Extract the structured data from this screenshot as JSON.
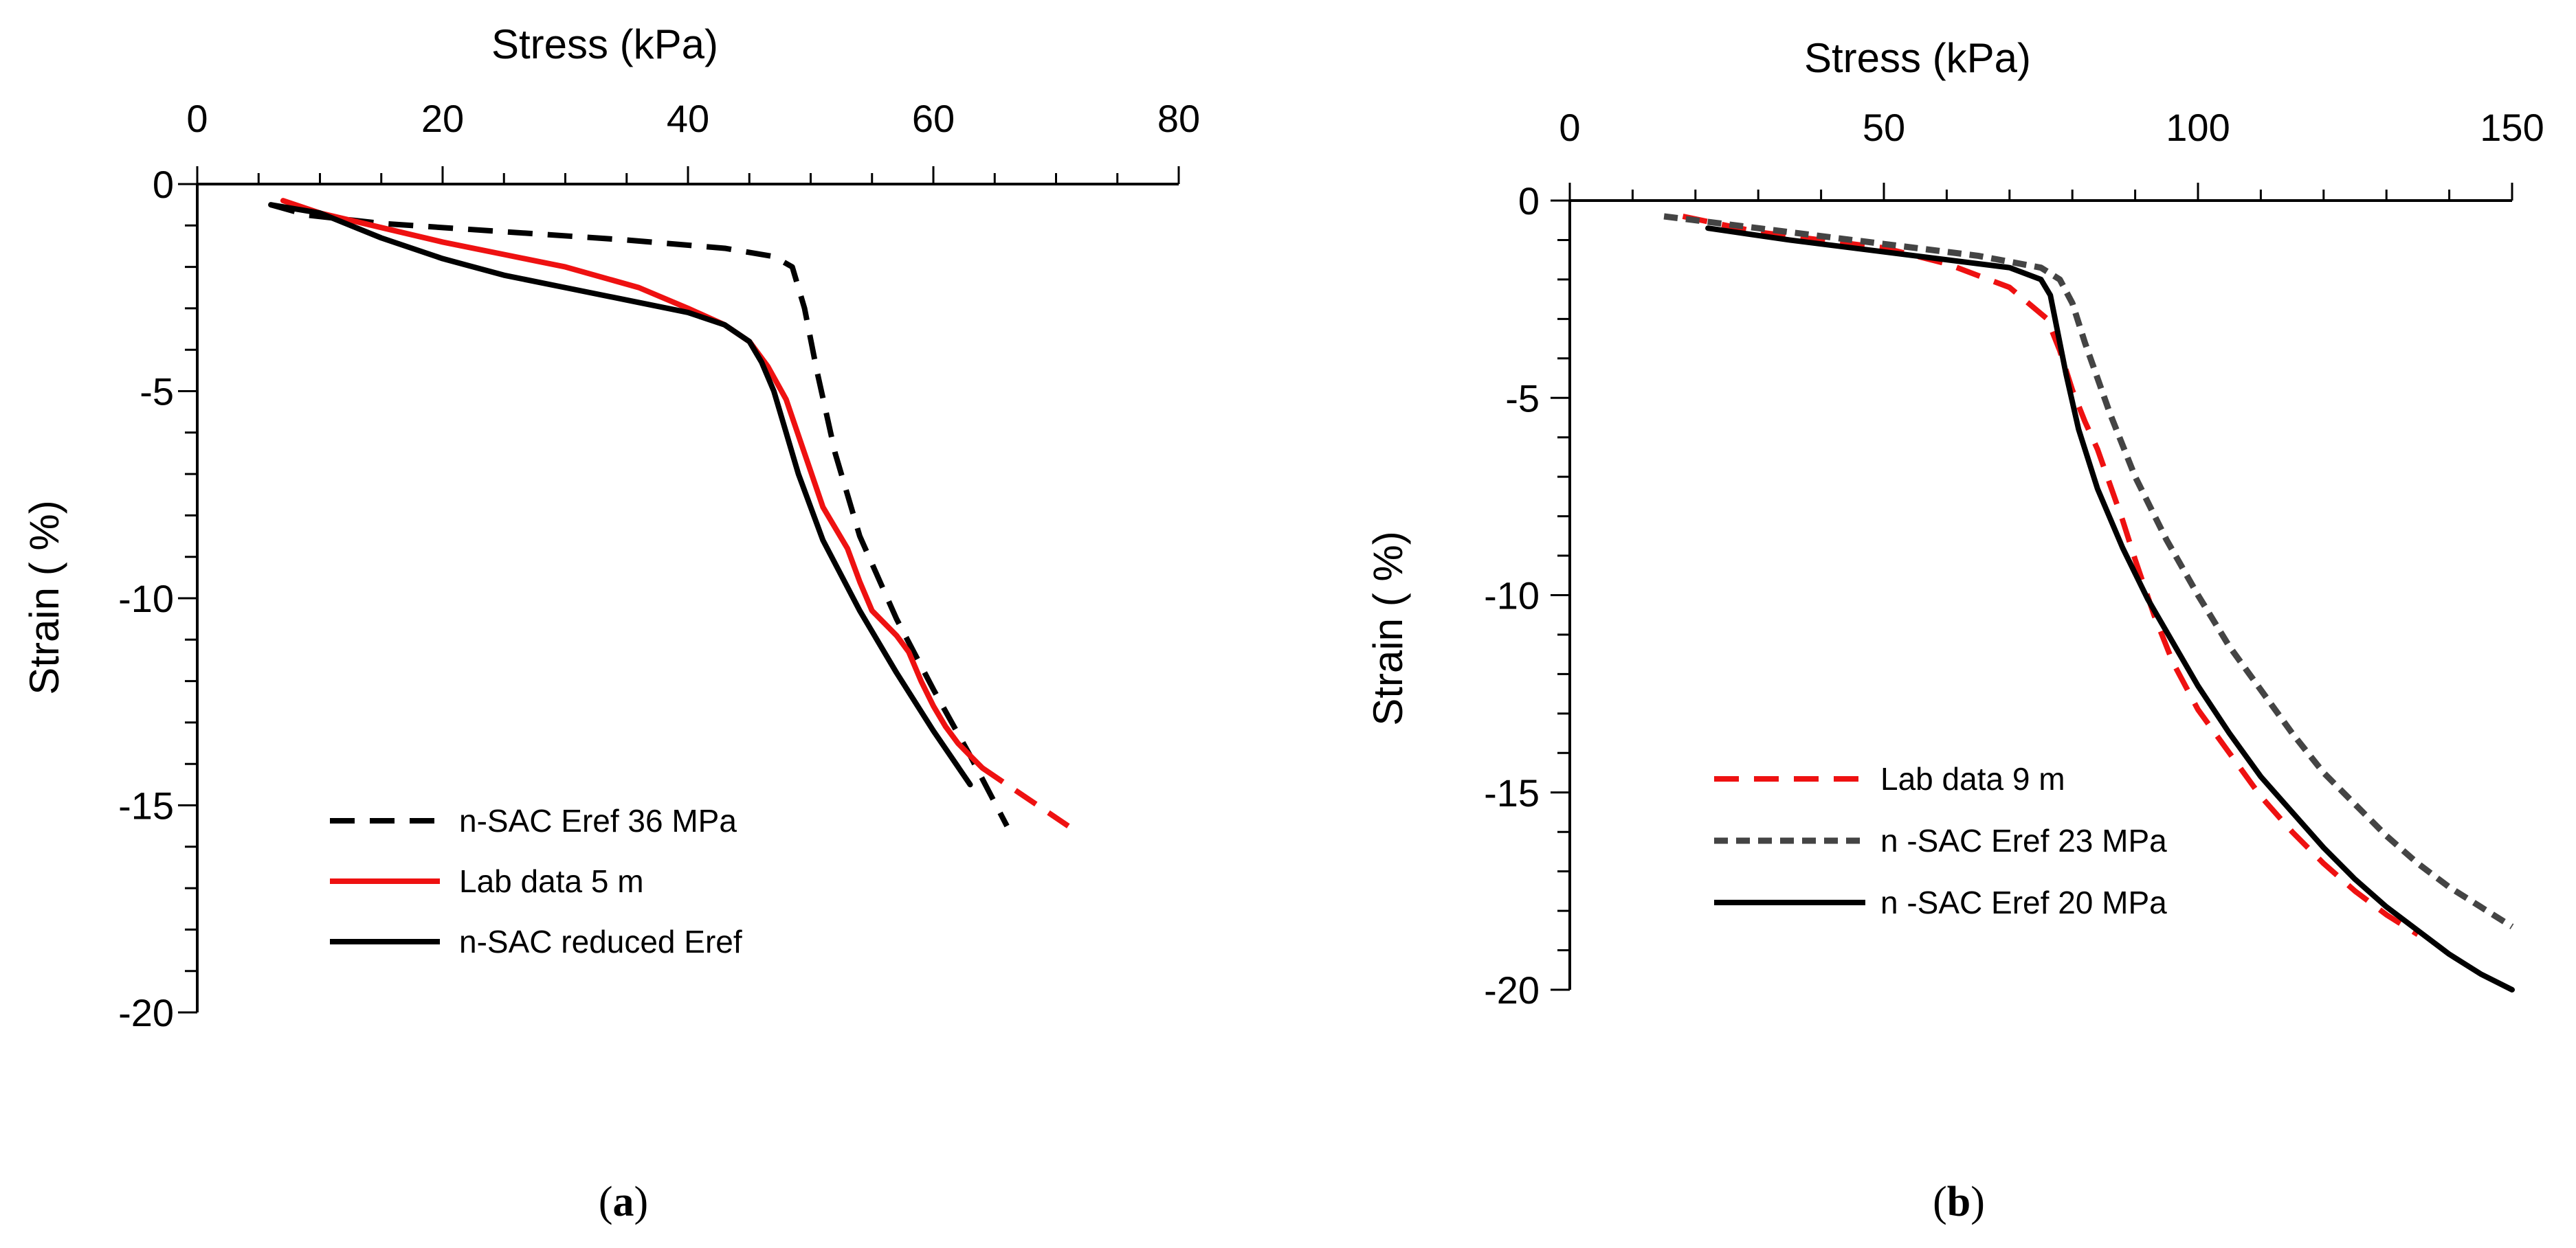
{
  "chart_data": [
    {
      "panel": "a",
      "type": "line",
      "caption": {
        "open": "(",
        "letter": "a",
        "close": ")"
      },
      "xlabel": "Stress (kPa)",
      "ylabel": "Strain ( %)",
      "xlim": [
        0,
        80
      ],
      "ylim": [
        -20,
        0
      ],
      "xticks": [
        0,
        20,
        40,
        60,
        80
      ],
      "yticks": [
        0,
        -5,
        -10,
        -15,
        -20
      ],
      "xtick_labels": [
        "0",
        "20",
        "40",
        "60",
        "80"
      ],
      "ytick_labels": [
        "0",
        "-5",
        "-10",
        "-15",
        "-20"
      ],
      "x_axis_position": "top",
      "legend_position": "bottom-center",
      "series": [
        {
          "name": "n-SAC Eref 36 MPa",
          "color": "#000000",
          "style": "dashed",
          "x": [
            6,
            9,
            15,
            25,
            35,
            43,
            47,
            48.5,
            49.5,
            50.5,
            52,
            54,
            57,
            60,
            63,
            66
          ],
          "y": [
            -0.5,
            -0.75,
            -0.95,
            -1.15,
            -1.35,
            -1.55,
            -1.75,
            -2.0,
            -3.0,
            -4.5,
            -6.5,
            -8.5,
            -10.5,
            -12.2,
            -13.8,
            -15.5
          ]
        },
        {
          "name": "Lab data 5 m",
          "color": "#ee1111",
          "style": "solid-then-dashed",
          "solid_until_x": 64,
          "x": [
            7,
            10,
            15,
            20,
            25,
            30,
            36,
            40,
            43,
            45,
            46.5,
            48,
            49.5,
            51,
            53,
            54,
            55,
            56,
            57,
            58,
            59,
            60,
            61,
            62,
            63,
            64,
            66,
            68,
            71
          ],
          "y": [
            -0.4,
            -0.7,
            -1.05,
            -1.4,
            -1.7,
            -2.0,
            -2.5,
            -3.0,
            -3.4,
            -3.8,
            -4.4,
            -5.2,
            -6.5,
            -7.8,
            -8.8,
            -9.6,
            -10.3,
            -10.6,
            -10.9,
            -11.3,
            -12.0,
            -12.6,
            -13.1,
            -13.5,
            -13.8,
            -14.1,
            -14.5,
            -14.9,
            -15.5
          ]
        },
        {
          "name": "n-SAC reduced Eref",
          "color": "#000000",
          "style": "solid",
          "x": [
            6,
            10,
            15,
            20,
            25,
            30,
            35,
            40,
            43,
            45,
            46,
            47,
            48,
            49,
            51,
            54,
            57,
            60,
            63
          ],
          "y": [
            -0.5,
            -0.7,
            -1.3,
            -1.8,
            -2.2,
            -2.5,
            -2.8,
            -3.1,
            -3.4,
            -3.8,
            -4.3,
            -5.0,
            -6.0,
            -7.0,
            -8.6,
            -10.3,
            -11.8,
            -13.2,
            -14.5
          ]
        }
      ]
    },
    {
      "panel": "b",
      "type": "line",
      "caption": {
        "open": "(",
        "letter": "b",
        "close": ")"
      },
      "xlabel": "Stress (kPa)",
      "ylabel": "Strain ( %)",
      "xlim": [
        0,
        150
      ],
      "ylim": [
        -20,
        0
      ],
      "xticks": [
        0,
        50,
        100,
        150
      ],
      "yticks": [
        0,
        -5,
        -10,
        -15,
        -20
      ],
      "xtick_labels": [
        "0",
        "50",
        "100",
        "150"
      ],
      "ytick_labels": [
        "0",
        "-5",
        "-10",
        "-15",
        "-20"
      ],
      "x_axis_position": "top",
      "legend_position": "bottom-left",
      "series": [
        {
          "name": "Lab data 9 m",
          "color": "#ee1111",
          "style": "dashed",
          "x": [
            18,
            30,
            50,
            60,
            70,
            76,
            78,
            80,
            82,
            84,
            86,
            88,
            90,
            93,
            96,
            100,
            105,
            110,
            115,
            120,
            125,
            130,
            135
          ],
          "y": [
            -0.4,
            -0.8,
            -1.2,
            -1.6,
            -2.2,
            -3.0,
            -3.8,
            -4.8,
            -5.6,
            -6.3,
            -7.2,
            -8.1,
            -9.1,
            -10.5,
            -11.7,
            -12.9,
            -14.0,
            -15.1,
            -16.0,
            -16.8,
            -17.5,
            -18.1,
            -18.6
          ]
        },
        {
          "name": "n -SAC  Eref 23 MPa",
          "color": "#444444",
          "style": "dashed",
          "x": [
            15,
            30,
            50,
            65,
            75,
            78,
            80,
            82,
            84,
            86,
            88,
            90,
            95,
            100,
            105,
            110,
            115,
            120,
            125,
            130,
            135,
            140,
            145,
            150
          ],
          "y": [
            -0.4,
            -0.7,
            -1.1,
            -1.4,
            -1.7,
            -2.0,
            -2.6,
            -3.6,
            -4.5,
            -5.4,
            -6.2,
            -7.0,
            -8.6,
            -10.0,
            -11.3,
            -12.4,
            -13.5,
            -14.5,
            -15.3,
            -16.1,
            -16.8,
            -17.4,
            -17.9,
            -18.4
          ]
        },
        {
          "name": " n -SAC Eref 20 MPa",
          "color": "#000000",
          "style": "solid",
          "x": [
            22,
            35,
            50,
            60,
            70,
            75,
            76.5,
            77.5,
            79,
            81,
            84,
            88,
            92,
            96,
            100,
            105,
            110,
            115,
            120,
            125,
            130,
            135,
            140,
            145,
            150
          ],
          "y": [
            -0.7,
            -1.0,
            -1.3,
            -1.5,
            -1.7,
            -2.0,
            -2.4,
            -3.2,
            -4.4,
            -5.8,
            -7.3,
            -8.8,
            -10.1,
            -11.2,
            -12.3,
            -13.5,
            -14.6,
            -15.5,
            -16.4,
            -17.2,
            -17.9,
            -18.5,
            -19.1,
            -19.6,
            -20.0
          ]
        }
      ]
    }
  ]
}
